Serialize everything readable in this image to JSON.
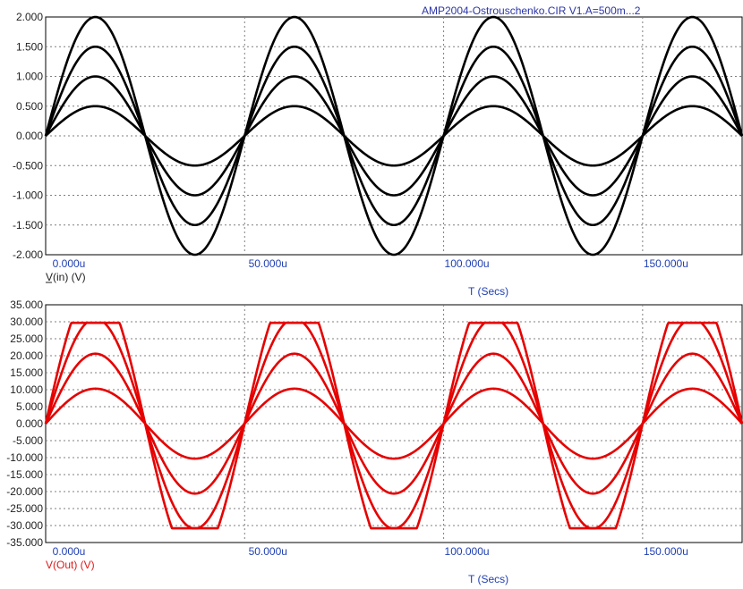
{
  "title": "AMP2004-Ostrouschenko.CIR V1.A=500m...2",
  "colors": {
    "top_trace": "#000000",
    "bottom_trace": "#e60000",
    "x_tick_text": "#1f3fb3",
    "title_text": "#2b35a8",
    "grid": "#7f7f7f"
  },
  "chart_data": [
    {
      "type": "line",
      "ylabel": "V(in) (V)",
      "xlabel": "T (Secs)",
      "xlim": [
        0,
        175
      ],
      "ylim": [
        -2,
        2
      ],
      "x_ticks": [
        "0.000u",
        "50.000u",
        "100.000u",
        "150.000u"
      ],
      "y_ticks": [
        "2.000",
        "1.500",
        "1.000",
        "0.500",
        "0.000",
        "-0.500",
        "-1.000",
        "-1.500",
        "-2.000"
      ],
      "grid": true,
      "signal": "sine",
      "frequency": "20kHz",
      "series": [
        {
          "amplitude": 0.5,
          "clip": null
        },
        {
          "amplitude": 1.0,
          "clip": null
        },
        {
          "amplitude": 1.5,
          "clip": null
        },
        {
          "amplitude": 2.0,
          "clip": null
        }
      ]
    },
    {
      "type": "line",
      "ylabel": "V(Out) (V)",
      "xlabel": "T (Secs)",
      "xlim": [
        0,
        175
      ],
      "ylim": [
        -35,
        35
      ],
      "x_ticks": [
        "0.000u",
        "50.000u",
        "100.000u",
        "150.000u"
      ],
      "y_ticks": [
        "35.000",
        "30.000",
        "25.000",
        "20.000",
        "15.000",
        "10.000",
        "5.000",
        "0.000",
        "-5.000",
        "-10.000",
        "-15.000",
        "-20.000",
        "-25.000",
        "-30.000",
        "-35.000"
      ],
      "grid": true,
      "signal": "sine",
      "frequency": "20kHz",
      "series": [
        {
          "amplitude": 10.3,
          "clip": null
        },
        {
          "amplitude": 20.6,
          "clip": null
        },
        {
          "amplitude": 30.9,
          "clip_high": 29.7,
          "clip_low": -30.8
        },
        {
          "amplitude": 41.2,
          "clip_high": 29.7,
          "clip_low": -30.8
        }
      ]
    }
  ]
}
